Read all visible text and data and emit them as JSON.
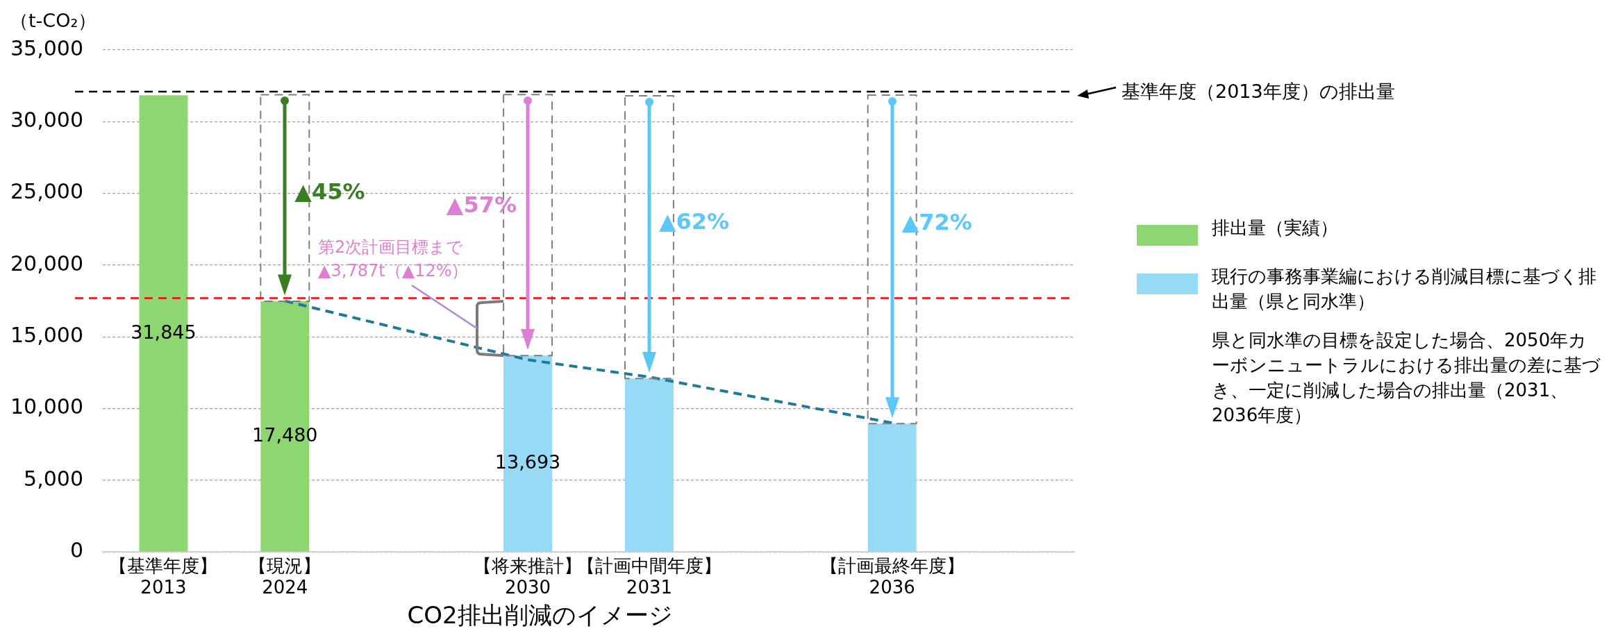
{
  "chart_data": {
    "type": "bar",
    "title": "CO2排出削減のイメージ",
    "ylabel": "（t-CO₂）",
    "categories": [
      "【基準年度】\n2013",
      "【現況】\n2024",
      null,
      "【将来推計】\n2030",
      "【計画中間年度】\n2031",
      null,
      "【計画最終年度】\n2036",
      null
    ],
    "stacked": true,
    "series": [
      {
        "name": "排出量（実績）",
        "color": "#8ed672",
        "values": [
          31845,
          17480,
          null,
          null,
          null,
          null,
          null,
          null
        ],
        "value_labels": [
          "31,845",
          "17,480",
          null,
          null,
          null,
          null,
          null,
          null
        ]
      },
      {
        "name": "現行の事務事業編における削減目標に基づく排出量（県と同水準）",
        "color": "#97daf5",
        "values": [
          null,
          null,
          null,
          13693,
          12100,
          null,
          8950,
          null
        ],
        "value_labels": [
          null,
          null,
          null,
          "13,693",
          null,
          null,
          null,
          null
        ]
      },
      {
        "color": "#7f7f7f",
        "values": [
          null,
          14400,
          null,
          18200,
          19700,
          null,
          22900,
          null
        ],
        "line_style": "dashed"
      },
      {
        "type": "line",
        "color": "#1f7a99",
        "values": [
          null,
          17500,
          null,
          13400,
          12200,
          null,
          9000,
          null
        ],
        "line_style": "dashed",
        "marker": "none"
      }
    ],
    "ylim": [
      0,
      35000
    ],
    "yticks": [
      {
        "value": 0,
        "label": "0"
      },
      {
        "value": 5000,
        "label": "5,000"
      },
      {
        "value": 10000,
        "label": "10,000"
      },
      {
        "value": 15000,
        "label": "15,000"
      },
      {
        "value": 20000,
        "label": "20,000"
      },
      {
        "value": 25000,
        "label": "25,000"
      },
      {
        "value": 30000,
        "label": "30,000"
      },
      {
        "value": 35000,
        "label": "35,000"
      }
    ],
    "grid": "y",
    "legend": "right",
    "ref_lines": [
      {
        "axis": "y",
        "value": 32100,
        "label": "基準年度（2013年度）の排出量",
        "color": "#000000",
        "line_style": "dashed"
      },
      {
        "axis": "y",
        "value": 17700,
        "color": "#ff0000",
        "line_style": "dashed"
      }
    ],
    "annotations": [
      "▲45%",
      "▲57%",
      "▲62%",
      "▲72%",
      "第2次計画目標まで\n▲3,787t（▲12%）",
      "県と同水準の目標を設定した場合、2050年カーボンニュートラルにおける排出量の差に基づき、一定に削減した場合の排出量（2031、2036年度）"
    ]
  }
}
